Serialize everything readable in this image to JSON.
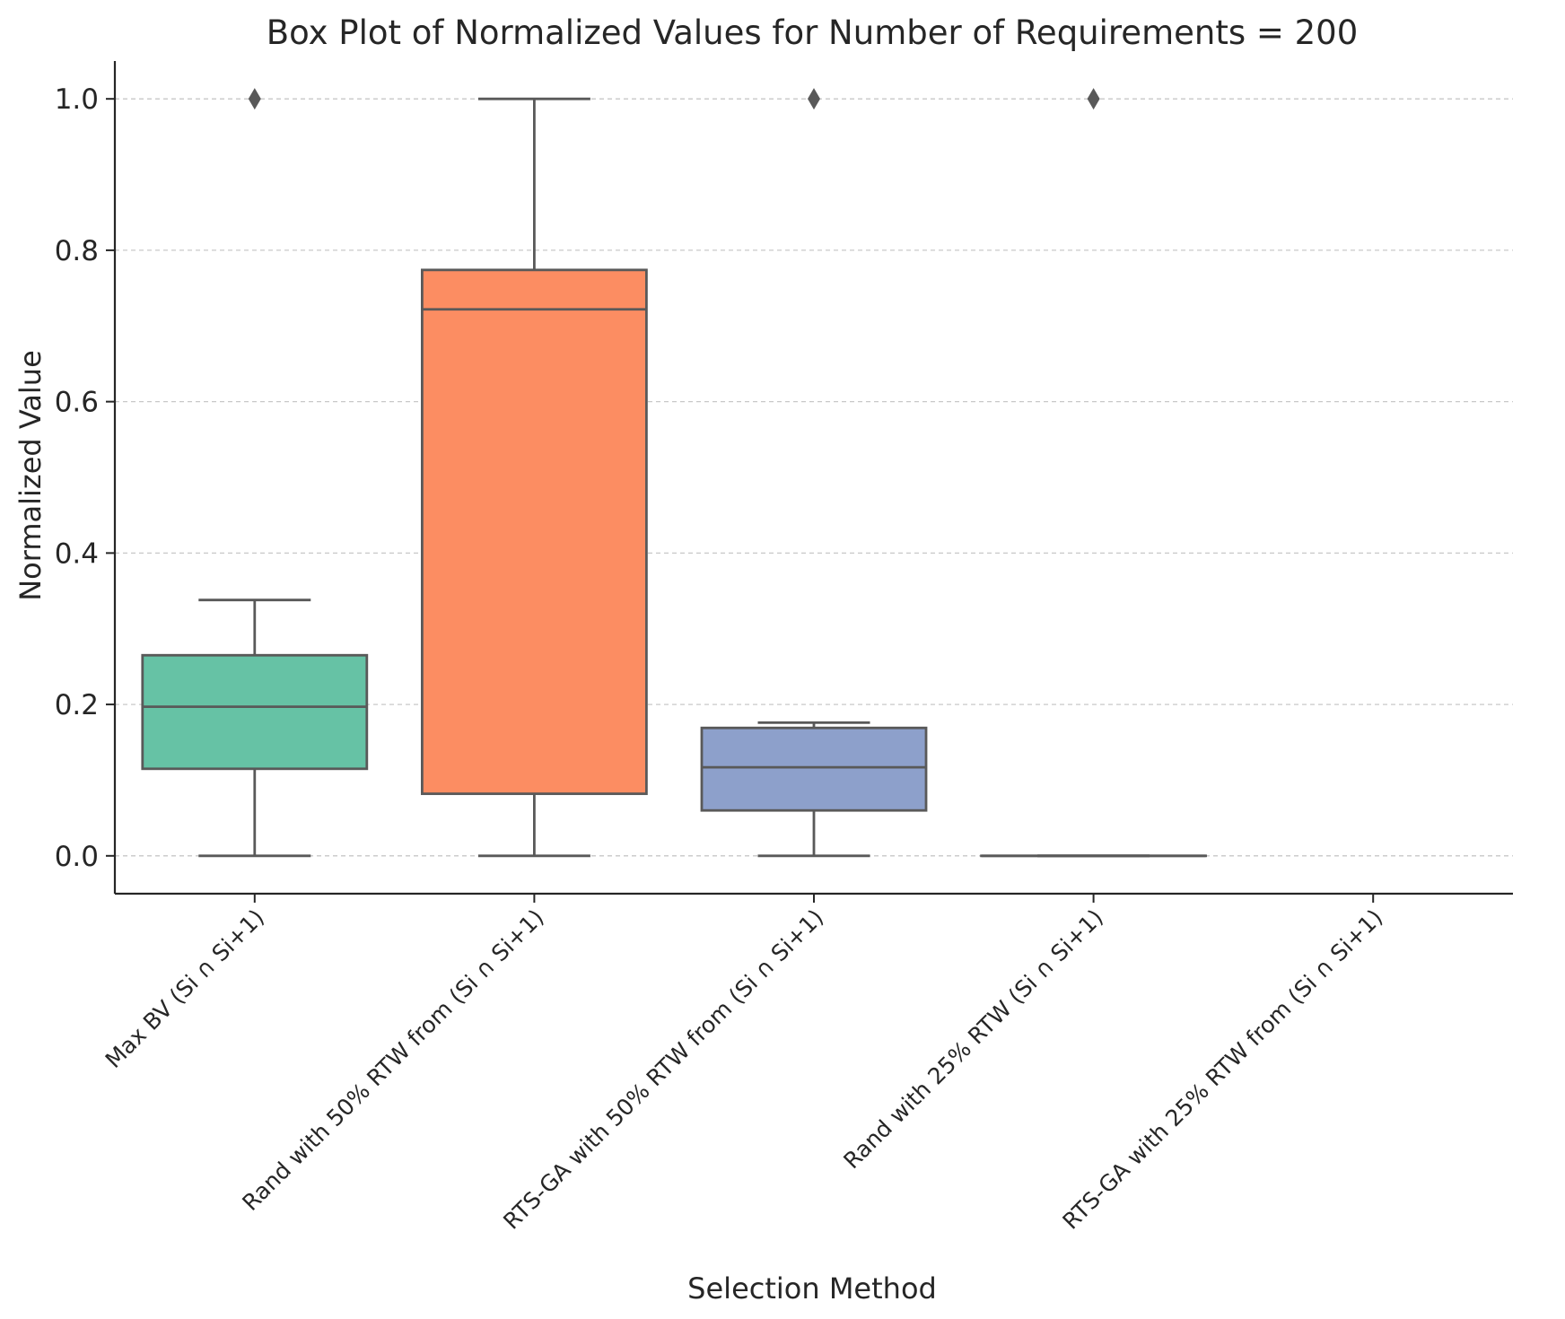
{
  "chart_data": {
    "type": "box",
    "title": "Box Plot of Normalized Values for Number of Requirements = 200",
    "xlabel": "Selection Method",
    "ylabel": "Normalized Value",
    "ylim": [
      -0.05,
      1.05
    ],
    "yticks": [
      0.0,
      0.2,
      0.4,
      0.6,
      0.8,
      1.0
    ],
    "ytick_labels": [
      "0.0",
      "0.2",
      "0.4",
      "0.6",
      "0.8",
      "1.0"
    ],
    "grid": "y-dashed",
    "categories": [
      "Max BV (Si ∩ Si+1)",
      "Rand with 50% RTW from (Si ∩ Si+1)",
      "RTS-GA with 50% RTW from (Si ∩ Si+1)",
      "Rand with 25% RTW (Si ∩ Si+1)",
      "RTS-GA with 25% RTW from (Si ∩ Si+1)"
    ],
    "boxes": [
      {
        "whisker_low": 0.0,
        "q1": 0.115,
        "median": 0.197,
        "q3": 0.265,
        "whisker_high": 0.338,
        "outliers": [
          1.0
        ],
        "color": "#66c2a5"
      },
      {
        "whisker_low": 0.0,
        "q1": 0.082,
        "median": 0.722,
        "q3": 0.774,
        "whisker_high": 1.0,
        "outliers": [],
        "color": "#fc8d62"
      },
      {
        "whisker_low": 0.0,
        "q1": 0.06,
        "median": 0.117,
        "q3": 0.169,
        "whisker_high": 0.176,
        "outliers": [
          1.0
        ],
        "color": "#8da0cb"
      },
      {
        "whisker_low": 0.0,
        "q1": 0.0,
        "median": 0.0,
        "q3": 0.0,
        "whisker_high": 0.0,
        "outliers": [
          1.0
        ],
        "color": "#e78ac3"
      },
      null
    ],
    "colors": {
      "edge": "#595959",
      "grid": "#c8c8c8",
      "axis": "#262626"
    }
  }
}
